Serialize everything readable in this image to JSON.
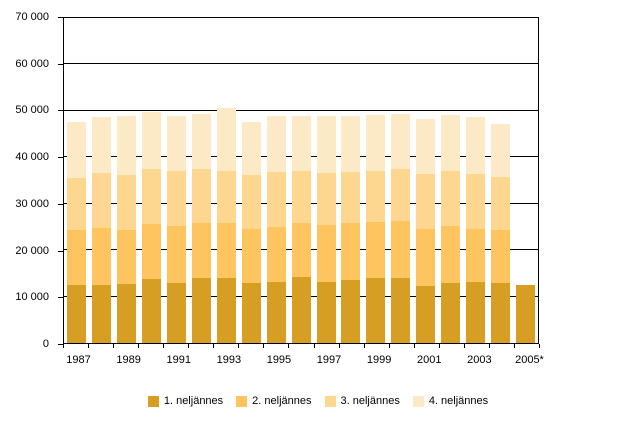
{
  "chart_data": {
    "type": "bar",
    "stacked": true,
    "title": "",
    "xlabel": "",
    "ylabel": "",
    "grid": true,
    "legend_position": "bottom",
    "ylim": [
      0,
      70000
    ],
    "y_ticks": [
      0,
      10000,
      20000,
      30000,
      40000,
      50000,
      60000,
      70000
    ],
    "y_tick_labels": [
      "0",
      "10 000",
      "20 000",
      "30 000",
      "40 000",
      "50 000",
      "60 000",
      "70 000"
    ],
    "categories": [
      "1987",
      "1988",
      "1989",
      "1990",
      "1991",
      "1992",
      "1993",
      "1994",
      "1995",
      "1996",
      "1997",
      "1998",
      "1999",
      "2000",
      "2001",
      "2002",
      "2003",
      "2004",
      "2005*"
    ],
    "x_tick_labels": [
      "1987",
      "1989",
      "1991",
      "1993",
      "1995",
      "1997",
      "1999",
      "2001",
      "2003",
      "2005*"
    ],
    "x_labeled_category_indices": [
      0,
      2,
      4,
      6,
      8,
      10,
      12,
      14,
      16,
      18
    ],
    "series": [
      {
        "name": "1. neljännes",
        "color": "#D69F23",
        "values": [
          12500,
          12500,
          12800,
          13800,
          12900,
          13900,
          13900,
          12900,
          13100,
          14200,
          13100,
          13500,
          13900,
          14000,
          12300,
          13000,
          13100,
          12900,
          12600
        ]
      },
      {
        "name": "2. neljännes",
        "color": "#FDC45F",
        "values": [
          11800,
          12200,
          11500,
          11900,
          12300,
          11900,
          12000,
          11600,
          11800,
          11700,
          12400,
          12400,
          12200,
          12300,
          12300,
          12300,
          11400,
          11500,
          0
        ]
      },
      {
        "name": "3. neljännes",
        "color": "#FDD690",
        "values": [
          11300,
          11900,
          11800,
          11700,
          11800,
          11600,
          11200,
          11600,
          11900,
          11200,
          11100,
          11000,
          11000,
          11200,
          11800,
          11800,
          11800,
          11300,
          0
        ]
      },
      {
        "name": "4. neljännes",
        "color": "#FCE9C5",
        "values": [
          12100,
          12100,
          12800,
          12300,
          12000,
          12000,
          13500,
          11500,
          12100,
          11900,
          12300,
          12000,
          12000,
          11800,
          11800,
          12000,
          12400,
          11500,
          0
        ]
      }
    ],
    "axis_color": "#000000",
    "background_color": "#FFFFFF"
  }
}
